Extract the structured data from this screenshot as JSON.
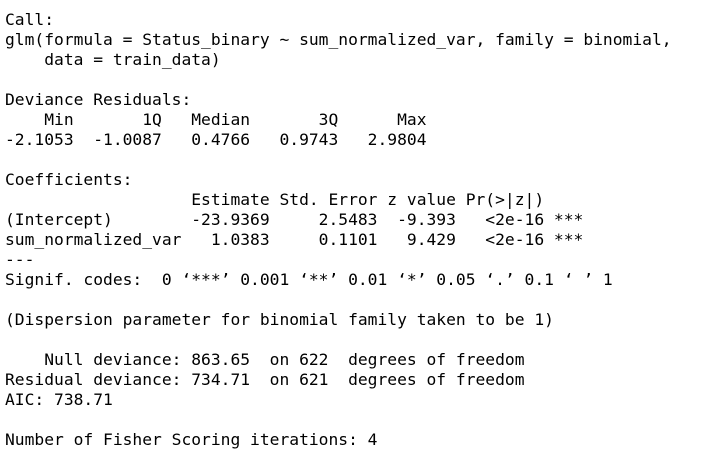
{
  "output": {
    "call_header": "Call:",
    "call_line1": "glm(formula = Status_binary ~ sum_normalized_var, family = binomial,",
    "call_line2": "    data = train_data)",
    "deviance_residuals": {
      "title": "Deviance Residuals:",
      "header": "    Min       1Q   Median       3Q      Max  ",
      "values": "-2.1053  -1.0087   0.4766   0.9743   2.9804  "
    },
    "coefficients": {
      "title": "Coefficients:",
      "header": "                   Estimate Std. Error z value Pr(>|z|)    ",
      "rows": [
        "(Intercept)        -23.9369     2.5483  -9.393   <2e-16 ***",
        "sum_normalized_var   1.0383     0.1101   9.429   <2e-16 ***"
      ],
      "separator": "---",
      "signif_codes": "Signif. codes:  0 ‘***’ 0.001 ‘**’ 0.01 ‘*’ 0.05 ‘.’ 0.1 ‘ ’ 1"
    },
    "dispersion": "(Dispersion parameter for binomial family taken to be 1)",
    "null_deviance": "    Null deviance: 863.65  on 622  degrees of freedom",
    "residual_deviance": "Residual deviance: 734.71  on 621  degrees of freedom",
    "aic": "AIC: 738.71",
    "fisher": "Number of Fisher Scoring iterations: 4"
  }
}
